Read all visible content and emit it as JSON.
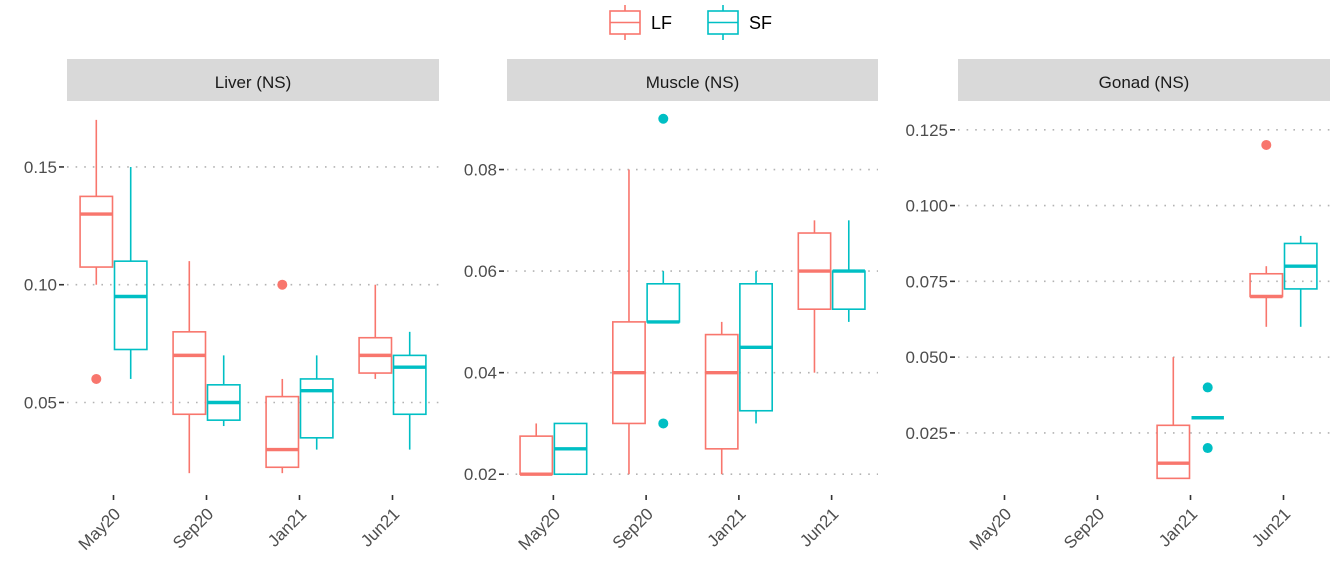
{
  "chart_data": {
    "type": "boxplot",
    "title": "",
    "xlabel": "",
    "ylabel": "",
    "legend": {
      "position": "top",
      "entries": [
        {
          "name": "LF",
          "color": "#F8766D"
        },
        {
          "name": "SF",
          "color": "#00BFC4"
        }
      ]
    },
    "grid": "major-y-dotted",
    "categories": [
      "May20",
      "Sep20",
      "Jan21",
      "Jun21"
    ],
    "panels": [
      {
        "title": "Liver (NS)",
        "ylim": [
          0.012,
          0.178
        ],
        "yticks": [
          0.05,
          0.1,
          0.15
        ],
        "ytick_labels": [
          "0.05",
          "0.10",
          "0.15"
        ],
        "boxes": [
          {
            "category": "May20",
            "group": "LF",
            "lower": 0.1,
            "q1": 0.1075,
            "median": 0.13,
            "q3": 0.1375,
            "upper": 0.17,
            "outliers": [
              0.06
            ]
          },
          {
            "category": "May20",
            "group": "SF",
            "lower": 0.06,
            "q1": 0.0725,
            "median": 0.095,
            "q3": 0.11,
            "upper": 0.15,
            "outliers": []
          },
          {
            "category": "Sep20",
            "group": "LF",
            "lower": 0.02,
            "q1": 0.045,
            "median": 0.07,
            "q3": 0.08,
            "upper": 0.11,
            "outliers": []
          },
          {
            "category": "Sep20",
            "group": "SF",
            "lower": 0.04,
            "q1": 0.0425,
            "median": 0.05,
            "q3": 0.0575,
            "upper": 0.07,
            "outliers": []
          },
          {
            "category": "Jan21",
            "group": "LF",
            "lower": 0.02,
            "q1": 0.0225,
            "median": 0.03,
            "q3": 0.0525,
            "upper": 0.06,
            "outliers": [
              0.1
            ]
          },
          {
            "category": "Jan21",
            "group": "SF",
            "lower": 0.03,
            "q1": 0.035,
            "median": 0.055,
            "q3": 0.06,
            "upper": 0.07,
            "outliers": []
          },
          {
            "category": "Jun21",
            "group": "LF",
            "lower": 0.06,
            "q1": 0.0625,
            "median": 0.07,
            "q3": 0.0775,
            "upper": 0.1,
            "outliers": []
          },
          {
            "category": "Jun21",
            "group": "SF",
            "lower": 0.03,
            "q1": 0.045,
            "median": 0.065,
            "q3": 0.07,
            "upper": 0.08,
            "outliers": []
          }
        ]
      },
      {
        "title": "Muscle (NS)",
        "ylim": [
          0.0165,
          0.0935
        ],
        "yticks": [
          0.02,
          0.04,
          0.06,
          0.08
        ],
        "ytick_labels": [
          "0.02",
          "0.04",
          "0.06",
          "0.08"
        ],
        "boxes": [
          {
            "category": "May20",
            "group": "LF",
            "lower": 0.02,
            "q1": 0.02,
            "median": 0.02,
            "q3": 0.0275,
            "upper": 0.03,
            "outliers": []
          },
          {
            "category": "May20",
            "group": "SF",
            "lower": 0.02,
            "q1": 0.02,
            "median": 0.025,
            "q3": 0.03,
            "upper": 0.03,
            "outliers": []
          },
          {
            "category": "Sep20",
            "group": "LF",
            "lower": 0.02,
            "q1": 0.03,
            "median": 0.04,
            "q3": 0.05,
            "upper": 0.08,
            "outliers": []
          },
          {
            "category": "Sep20",
            "group": "SF",
            "lower": 0.05,
            "q1": 0.05,
            "median": 0.05,
            "q3": 0.0575,
            "upper": 0.06,
            "outliers": [
              0.09,
              0.03
            ]
          },
          {
            "category": "Jan21",
            "group": "LF",
            "lower": 0.02,
            "q1": 0.025,
            "median": 0.04,
            "q3": 0.0475,
            "upper": 0.05,
            "outliers": []
          },
          {
            "category": "Jan21",
            "group": "SF",
            "lower": 0.03,
            "q1": 0.0325,
            "median": 0.045,
            "q3": 0.0575,
            "upper": 0.06,
            "outliers": []
          },
          {
            "category": "Jun21",
            "group": "LF",
            "lower": 0.04,
            "q1": 0.0525,
            "median": 0.06,
            "q3": 0.0675,
            "upper": 0.07,
            "outliers": []
          },
          {
            "category": "Jun21",
            "group": "SF",
            "lower": 0.05,
            "q1": 0.0525,
            "median": 0.06,
            "q3": 0.06,
            "upper": 0.07,
            "outliers": []
          }
        ]
      },
      {
        "title": "Gonad (NS)",
        "ylim": [
          0.0055,
          0.1345
        ],
        "yticks": [
          0.025,
          0.05,
          0.075,
          0.1,
          0.125
        ],
        "ytick_labels": [
          "0.025",
          "0.050",
          "0.075",
          "0.100",
          "0.125"
        ],
        "boxes": [
          {
            "category": "Jan21",
            "group": "LF",
            "lower": 0.01,
            "q1": 0.01,
            "median": 0.015,
            "q3": 0.0275,
            "upper": 0.05,
            "outliers": []
          },
          {
            "category": "Jan21",
            "group": "SF",
            "lower": 0.03,
            "q1": 0.03,
            "median": 0.03,
            "q3": 0.03,
            "upper": 0.03,
            "outliers": [
              0.04,
              0.02
            ]
          },
          {
            "category": "Jun21",
            "group": "LF",
            "lower": 0.06,
            "q1": 0.07,
            "median": 0.07,
            "q3": 0.0775,
            "upper": 0.08,
            "outliers": [
              0.12
            ]
          },
          {
            "category": "Jun21",
            "group": "SF",
            "lower": 0.06,
            "q1": 0.0725,
            "median": 0.08,
            "q3": 0.0875,
            "upper": 0.09,
            "outliers": []
          }
        ]
      }
    ]
  }
}
